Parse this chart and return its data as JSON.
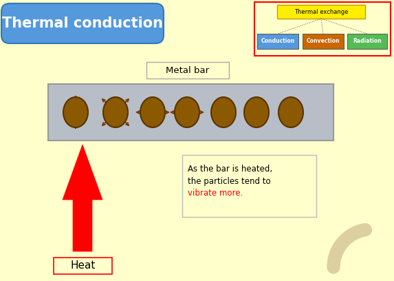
{
  "bg_color": "#ffffcc",
  "title": "Thermal conduction",
  "title_bg": "#5599dd",
  "title_color": "white",
  "metal_bar_label": "Metal bar",
  "bar_color": "#b8bec8",
  "bar_edge": "#999999",
  "particle_color": "#8B5A00",
  "particle_edge": "#5a3300",
  "arrow_color": "#7a3800",
  "heat_label": "Heat",
  "annotation_line1": "As the bar is heated,",
  "annotation_line2": "the particles tend to",
  "annotation_line3": "vibrate more.",
  "inset_title": "Thermal exchange",
  "inset_conduction": "Conduction",
  "inset_convection": "Convection",
  "inset_radiation": "Radiation",
  "inset_title_bg": "#ffee00",
  "inset_cond_bg": "#5599dd",
  "inset_conv_bg": "#cc6600",
  "inset_rad_bg": "#55bb55",
  "watermark_color": "#ddd0a0"
}
